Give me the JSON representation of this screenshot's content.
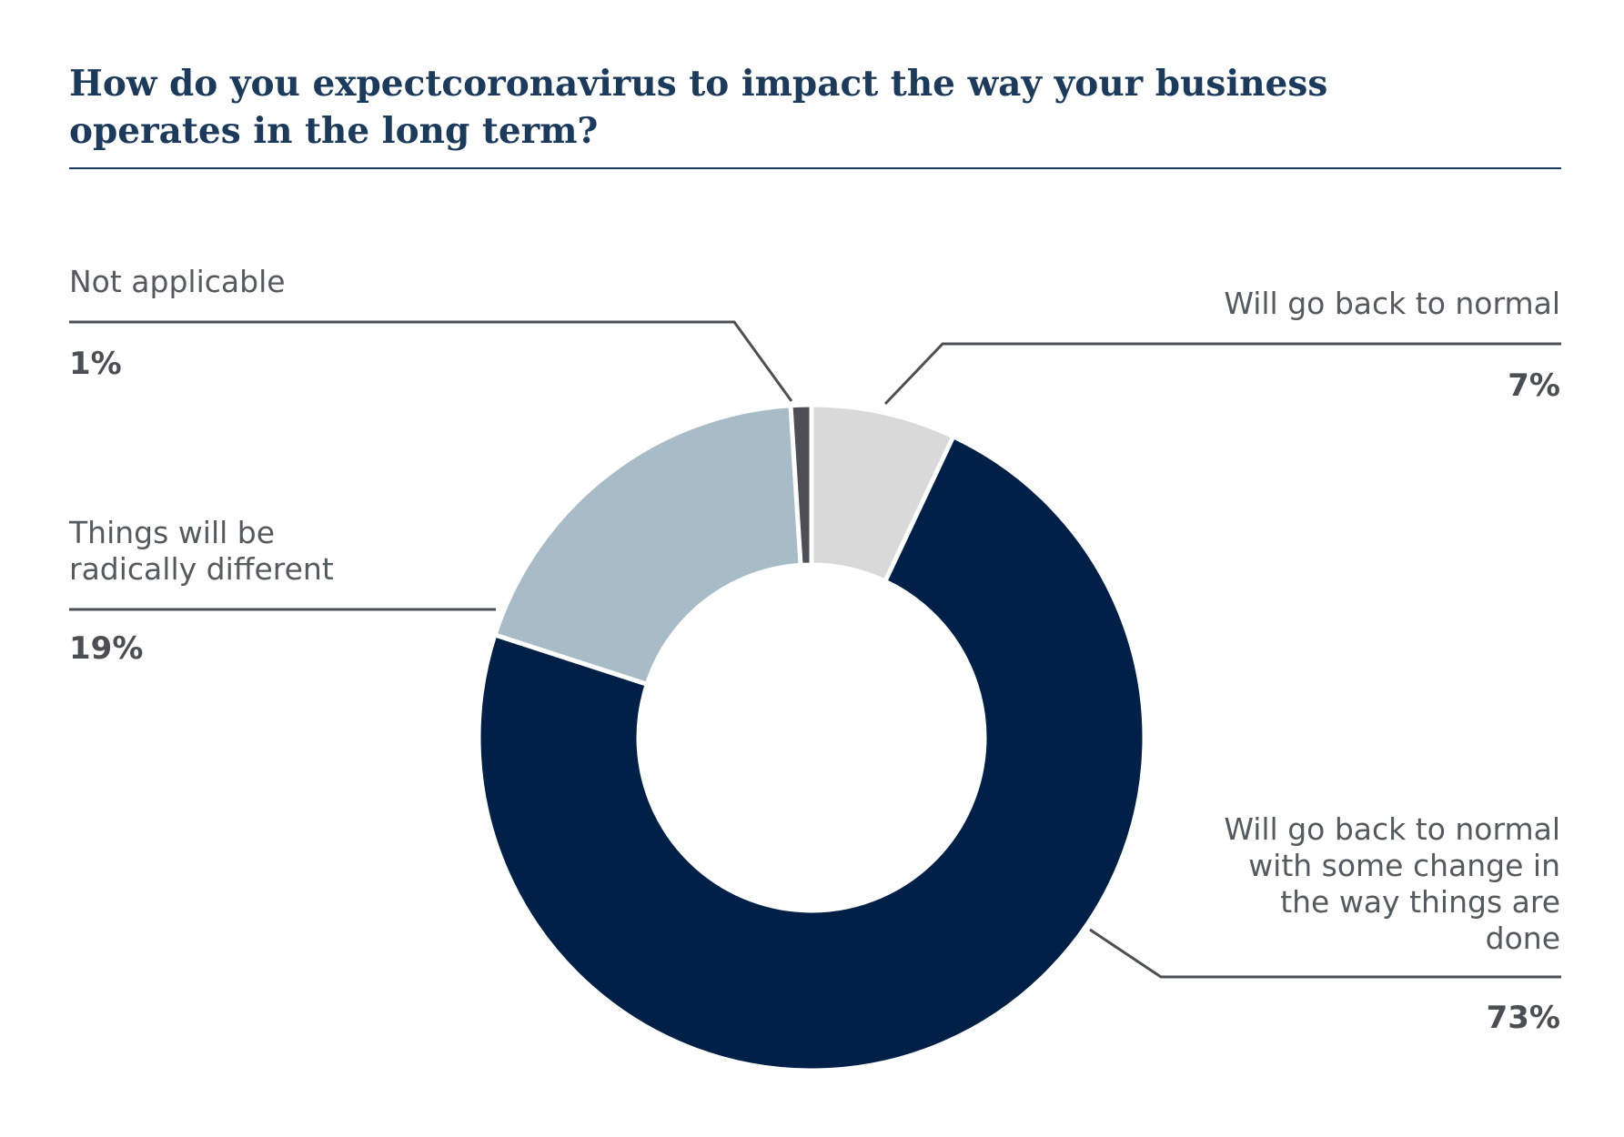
{
  "title": "How do you expectcoronavirus to impact the way your business operates in the long term?",
  "chart_data": {
    "type": "pie",
    "title": "How do you expectcoronavirus to impact the way your business operates in the long term?",
    "categories": [
      "Will go back to normal",
      "Will go back to normal with some change in the way things are done",
      "Things will be radically different",
      "Not applicable"
    ],
    "values": [
      7,
      73,
      19,
      1
    ],
    "value_labels": [
      "7%",
      "73%",
      "19%",
      "1%"
    ],
    "colors": [
      "#d9d9d9",
      "#012047",
      "#a7bcc6",
      "#4c5054"
    ],
    "style": "donut",
    "labels_placement": "callouts with leader lines"
  }
}
